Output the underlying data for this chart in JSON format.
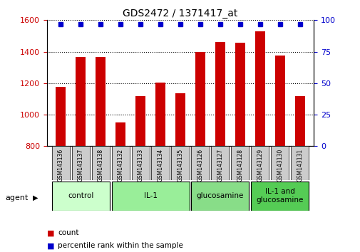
{
  "title": "GDS2472 / 1371417_at",
  "samples": [
    "GSM143136",
    "GSM143137",
    "GSM143138",
    "GSM143132",
    "GSM143133",
    "GSM143134",
    "GSM143135",
    "GSM143126",
    "GSM143127",
    "GSM143128",
    "GSM143129",
    "GSM143130",
    "GSM143131"
  ],
  "counts": [
    1178,
    1368,
    1367,
    950,
    1120,
    1205,
    1135,
    1400,
    1460,
    1455,
    1530,
    1375,
    1120
  ],
  "percentiles": [
    97,
    97,
    97,
    97,
    97,
    97,
    97,
    97,
    97,
    97,
    97,
    97,
    97
  ],
  "bar_color": "#cc0000",
  "dot_color": "#0000cc",
  "ylim_left": [
    800,
    1600
  ],
  "ylim_right": [
    0,
    100
  ],
  "yticks_left": [
    800,
    1000,
    1200,
    1400,
    1600
  ],
  "yticks_right": [
    0,
    25,
    50,
    75,
    100
  ],
  "groups": [
    {
      "label": "control",
      "indices": [
        0,
        1,
        2
      ],
      "color": "#ccffcc"
    },
    {
      "label": "IL-1",
      "indices": [
        3,
        4,
        5,
        6
      ],
      "color": "#99ee99"
    },
    {
      "label": "glucosamine",
      "indices": [
        7,
        8,
        9
      ],
      "color": "#88dd88"
    },
    {
      "label": "IL-1 and\nglucosamine",
      "indices": [
        10,
        11,
        12
      ],
      "color": "#55cc55"
    }
  ],
  "agent_label": "agent",
  "legend_count_label": "count",
  "legend_pct_label": "percentile rank within the sample",
  "bg_color": "#ffffff",
  "plot_bg_color": "#ffffff",
  "grid_color": "#000000",
  "tick_label_color_left": "#cc0000",
  "tick_label_color_right": "#0000cc",
  "bar_width": 0.5,
  "sample_box_color": "#cccccc"
}
